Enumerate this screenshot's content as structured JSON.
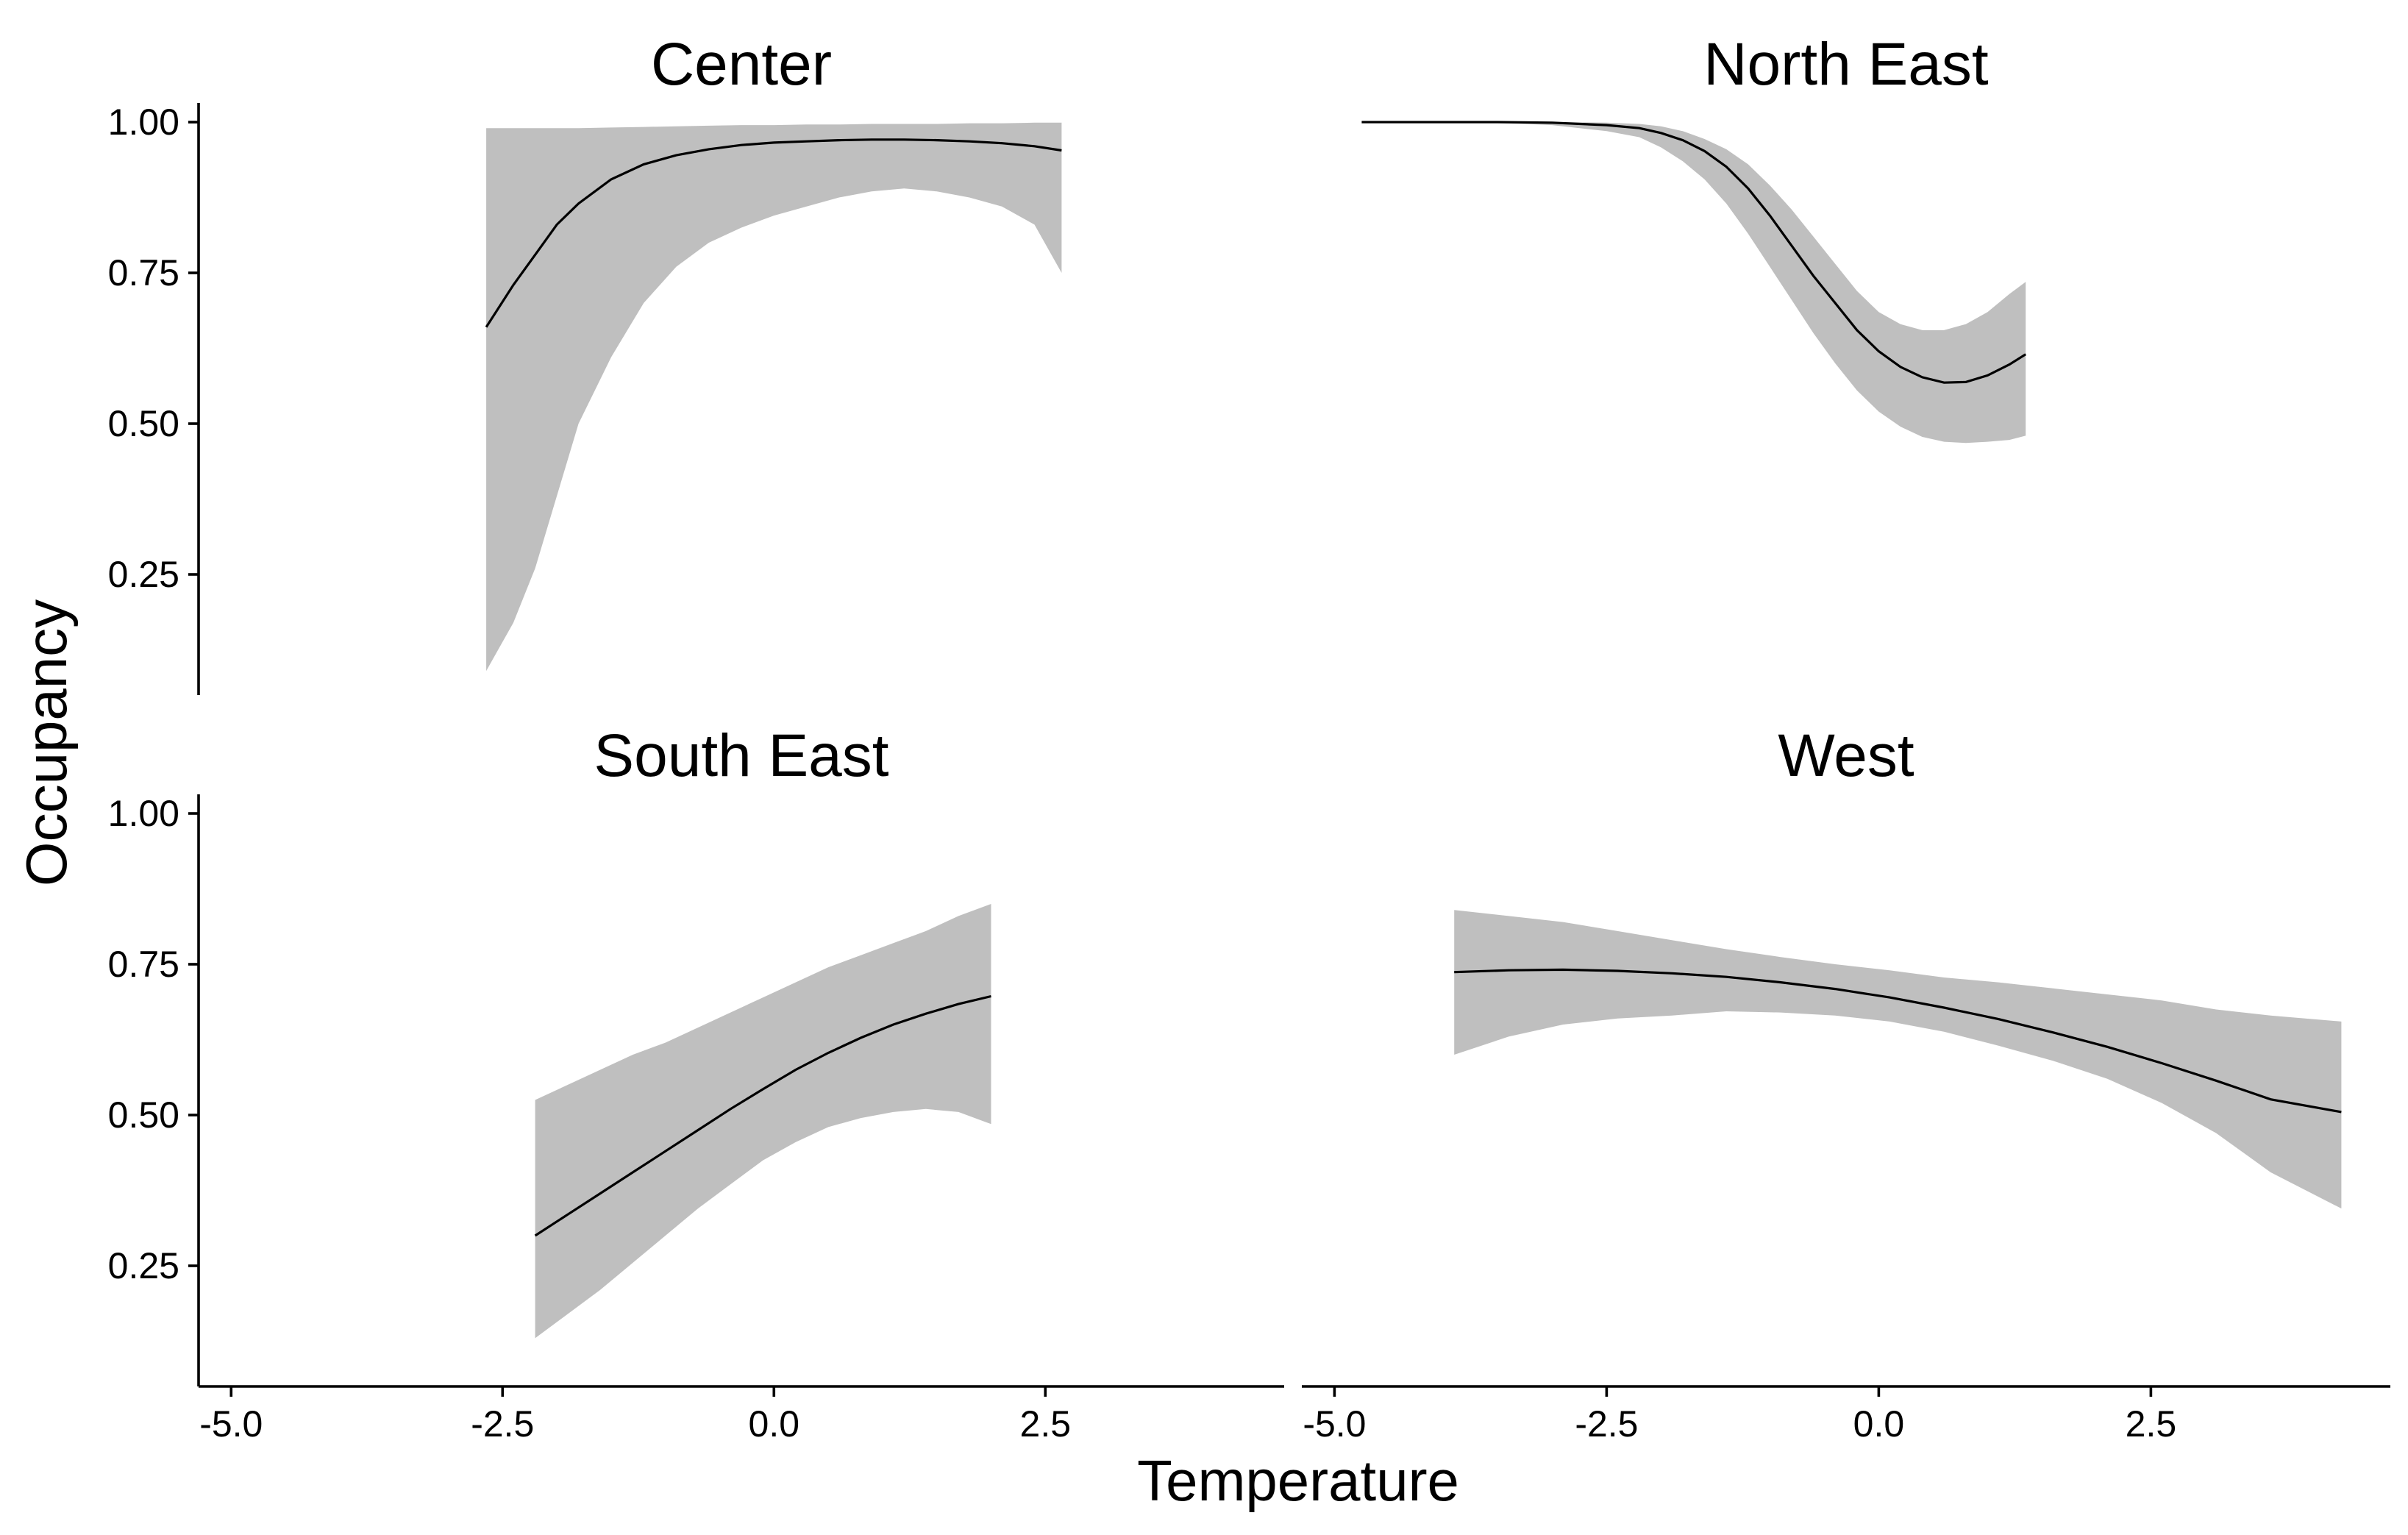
{
  "chart_data": {
    "type": "line",
    "layout": "facet-grid 2x2",
    "xlabel": "Temperature",
    "ylabel": "Occupancy",
    "xlim": [
      -5.3,
      4.7
    ],
    "ylim": [
      0.05,
      1.05
    ],
    "x_ticks": [
      "-5.0",
      "-2.5",
      "0.0",
      "2.5"
    ],
    "y_ticks": [
      "0.25",
      "0.50",
      "0.75",
      "1.00"
    ],
    "grid": false,
    "legend": "none",
    "colors": {
      "ribbon": "#bfbfbf",
      "line": "#000000"
    },
    "panels": [
      {
        "title": "Center",
        "x": [
          -2.65,
          -2.4,
          -2.2,
          -2.0,
          -1.8,
          -1.5,
          -1.2,
          -0.9,
          -0.6,
          -0.3,
          0.0,
          0.3,
          0.6,
          0.9,
          1.2,
          1.5,
          1.8,
          2.1,
          2.4,
          2.65
        ],
        "y": [
          0.66,
          0.73,
          0.78,
          0.83,
          0.865,
          0.905,
          0.93,
          0.945,
          0.955,
          0.962,
          0.966,
          0.968,
          0.97,
          0.971,
          0.971,
          0.97,
          0.968,
          0.965,
          0.96,
          0.953
        ],
        "lower": [
          0.09,
          0.17,
          0.26,
          0.38,
          0.5,
          0.61,
          0.7,
          0.76,
          0.8,
          0.825,
          0.845,
          0.86,
          0.875,
          0.885,
          0.89,
          0.885,
          0.875,
          0.86,
          0.83,
          0.75
        ],
        "upper": [
          0.99,
          0.99,
          0.99,
          0.99,
          0.99,
          0.991,
          0.992,
          0.993,
          0.994,
          0.995,
          0.995,
          0.996,
          0.996,
          0.997,
          0.997,
          0.997,
          0.998,
          0.998,
          0.999,
          0.999
        ]
      },
      {
        "title": "North East",
        "x": [
          -4.75,
          -4.0,
          -3.5,
          -3.0,
          -2.5,
          -2.2,
          -2.0,
          -1.8,
          -1.6,
          -1.4,
          -1.2,
          -1.0,
          -0.8,
          -0.6,
          -0.4,
          -0.2,
          0.0,
          0.2,
          0.4,
          0.6,
          0.8,
          1.0,
          1.2,
          1.35
        ],
        "y": [
          1.0,
          1.0,
          1.0,
          0.999,
          0.995,
          0.99,
          0.982,
          0.97,
          0.952,
          0.926,
          0.89,
          0.845,
          0.795,
          0.745,
          0.7,
          0.655,
          0.62,
          0.594,
          0.577,
          0.568,
          0.569,
          0.58,
          0.598,
          0.615
        ],
        "lower": [
          1.0,
          1.0,
          0.999,
          0.995,
          0.985,
          0.975,
          0.958,
          0.935,
          0.905,
          0.865,
          0.815,
          0.76,
          0.705,
          0.65,
          0.6,
          0.555,
          0.52,
          0.495,
          0.478,
          0.47,
          0.468,
          0.47,
          0.473,
          0.48
        ],
        "upper": [
          1.0,
          1.0,
          1.0,
          1.0,
          0.999,
          0.997,
          0.993,
          0.985,
          0.972,
          0.955,
          0.93,
          0.895,
          0.855,
          0.81,
          0.765,
          0.72,
          0.685,
          0.665,
          0.655,
          0.655,
          0.665,
          0.685,
          0.715,
          0.735
        ]
      },
      {
        "title": "South East",
        "x": [
          -2.2,
          -1.9,
          -1.6,
          -1.3,
          -1.0,
          -0.7,
          -0.4,
          -0.1,
          0.2,
          0.5,
          0.8,
          1.1,
          1.4,
          1.7,
          2.0
        ],
        "y": [
          0.3,
          0.335,
          0.37,
          0.405,
          0.44,
          0.475,
          0.51,
          0.543,
          0.575,
          0.603,
          0.628,
          0.65,
          0.668,
          0.684,
          0.697
        ],
        "lower": [
          0.13,
          0.17,
          0.21,
          0.255,
          0.3,
          0.345,
          0.385,
          0.425,
          0.455,
          0.48,
          0.495,
          0.505,
          0.51,
          0.505,
          0.485
        ],
        "upper": [
          0.525,
          0.55,
          0.575,
          0.6,
          0.62,
          0.645,
          0.67,
          0.695,
          0.72,
          0.745,
          0.765,
          0.785,
          0.805,
          0.83,
          0.85
        ]
      },
      {
        "title": "West",
        "x": [
          -3.9,
          -3.4,
          -2.9,
          -2.4,
          -1.9,
          -1.4,
          -0.9,
          -0.4,
          0.1,
          0.6,
          1.1,
          1.6,
          2.1,
          2.6,
          3.1,
          3.6,
          4.25
        ],
        "y": [
          0.737,
          0.74,
          0.741,
          0.739,
          0.735,
          0.729,
          0.72,
          0.709,
          0.695,
          0.678,
          0.659,
          0.637,
          0.613,
          0.586,
          0.557,
          0.526,
          0.505
        ],
        "lower": [
          0.6,
          0.63,
          0.65,
          0.66,
          0.665,
          0.672,
          0.67,
          0.665,
          0.655,
          0.638,
          0.615,
          0.59,
          0.56,
          0.52,
          0.47,
          0.405,
          0.345
        ],
        "upper": [
          0.84,
          0.83,
          0.82,
          0.805,
          0.79,
          0.775,
          0.762,
          0.75,
          0.74,
          0.728,
          0.72,
          0.71,
          0.7,
          0.69,
          0.675,
          0.665,
          0.655
        ]
      }
    ]
  }
}
